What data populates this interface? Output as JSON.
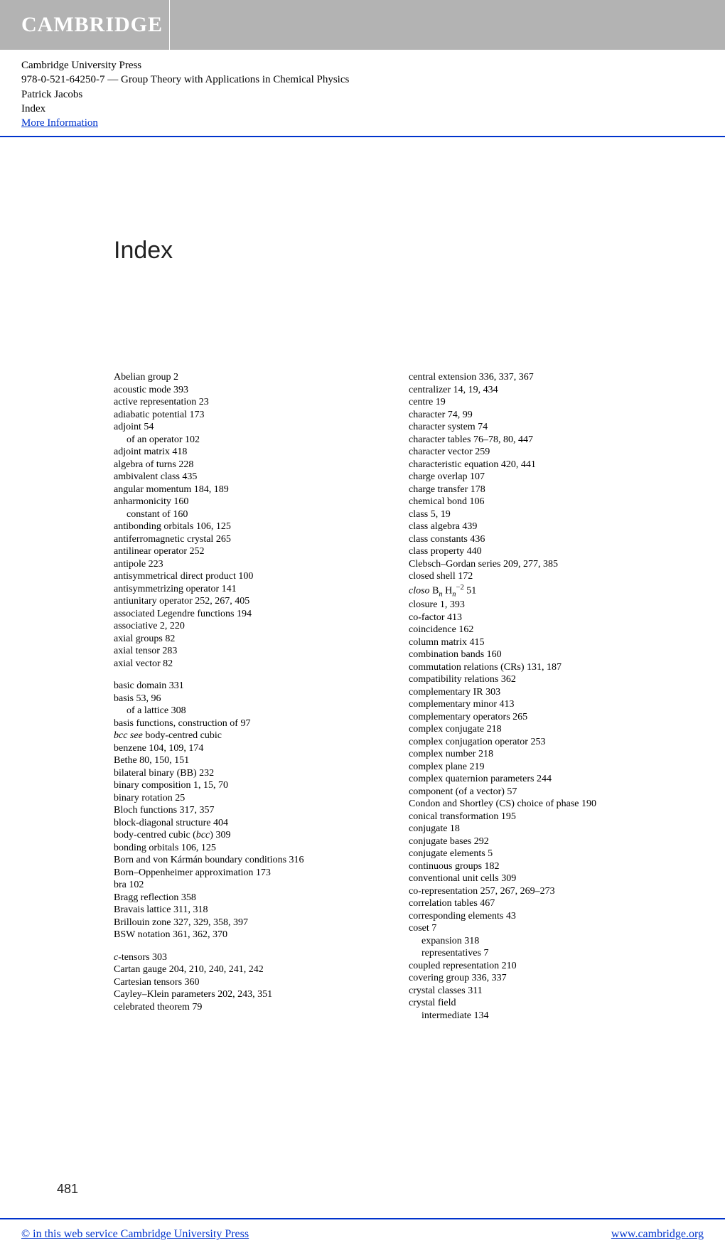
{
  "header": {
    "logo_text": "CAMBRIDGE",
    "publisher": "Cambridge University Press",
    "isbn_line": "978-0-521-64250-7 — Group Theory with Applications in Chemical Physics",
    "author": "Patrick Jacobs",
    "section": "Index",
    "more_info": "More Information"
  },
  "title": "Index",
  "page_number": "481",
  "entries": [
    {
      "t": "Abelian group 2"
    },
    {
      "t": "acoustic mode 393"
    },
    {
      "t": "active representation 23"
    },
    {
      "t": "adiabatic potential 173"
    },
    {
      "t": "adjoint 54"
    },
    {
      "t": "of an operator 102",
      "sub": true
    },
    {
      "t": "adjoint matrix 418"
    },
    {
      "t": "algebra of turns 228"
    },
    {
      "t": "ambivalent class 435"
    },
    {
      "t": "angular momentum 184, 189"
    },
    {
      "t": "anharmonicity 160"
    },
    {
      "t": "constant of 160",
      "sub": true
    },
    {
      "t": "antibonding orbitals 106, 125"
    },
    {
      "t": "antiferromagnetic crystal 265"
    },
    {
      "t": "antilinear operator 252"
    },
    {
      "t": "antipole 223"
    },
    {
      "t": "antisymmetrical direct product 100"
    },
    {
      "t": "antisymmetrizing operator 141"
    },
    {
      "t": "antiunitary operator 252, 267, 405"
    },
    {
      "t": "associated Legendre functions 194"
    },
    {
      "t": "associative 2, 220"
    },
    {
      "t": "axial groups 82"
    },
    {
      "t": "axial tensor 283"
    },
    {
      "t": "axial vector 82"
    },
    {
      "spacer": true
    },
    {
      "t": "basic domain 331"
    },
    {
      "t": "basis 53, 96"
    },
    {
      "t": "of a lattice 308",
      "sub": true
    },
    {
      "t": "basis functions, construction of 97"
    },
    {
      "html": "<span class='it'>bcc see</span> body-centred cubic"
    },
    {
      "t": "benzene 104, 109, 174"
    },
    {
      "t": "Bethe 80, 150, 151"
    },
    {
      "t": "bilateral binary (BB) 232"
    },
    {
      "t": "binary composition 1, 15, 70"
    },
    {
      "t": "binary rotation 25"
    },
    {
      "t": "Bloch functions 317, 357"
    },
    {
      "t": "block-diagonal structure 404"
    },
    {
      "html": "body-centred cubic (<span class='it'>bcc</span>) 309"
    },
    {
      "t": "bonding orbitals 106, 125"
    },
    {
      "t": "Born and von Kármán boundary conditions 316"
    },
    {
      "t": "Born–Oppenheimer approximation 173"
    },
    {
      "t": "bra 102"
    },
    {
      "t": "Bragg reflection 358"
    },
    {
      "t": "Bravais lattice 311, 318"
    },
    {
      "t": "Brillouin zone 327, 329, 358, 397"
    },
    {
      "t": "BSW notation 361, 362, 370"
    },
    {
      "spacer": true
    },
    {
      "html": "<span class='it'>c</span>-tensors 303"
    },
    {
      "t": "Cartan gauge 204, 210, 240, 241, 242"
    },
    {
      "t": "Cartesian tensors 360"
    },
    {
      "t": "Cayley–Klein parameters 202, 243, 351"
    },
    {
      "t": "celebrated theorem 79"
    },
    {
      "t": "central extension 336, 337, 367"
    },
    {
      "t": "centralizer 14, 19, 434"
    },
    {
      "t": "centre 19"
    },
    {
      "t": "character 74, 99"
    },
    {
      "t": "character system 74"
    },
    {
      "t": "character tables 76–78, 80, 447"
    },
    {
      "t": "character vector 259"
    },
    {
      "t": "characteristic equation 420, 441"
    },
    {
      "t": "charge overlap 107"
    },
    {
      "t": "charge transfer 178"
    },
    {
      "t": "chemical bond 106"
    },
    {
      "t": "class 5, 19"
    },
    {
      "t": "class algebra 439"
    },
    {
      "t": "class constants 436"
    },
    {
      "t": "class property 440"
    },
    {
      "t": "Clebsch–Gordan series 209, 277, 385"
    },
    {
      "t": "closed shell 172"
    },
    {
      "html": "<span class='it'>closo</span> B<span class='sub-n'>n</span> H<span class='sub-n'>n</span><span class='sup-n'>−2</span> 51"
    },
    {
      "t": "closure 1, 393"
    },
    {
      "t": "co-factor 413"
    },
    {
      "t": "coincidence 162"
    },
    {
      "t": "column matrix 415"
    },
    {
      "t": "combination bands 160"
    },
    {
      "t": "commutation relations (CRs) 131, 187"
    },
    {
      "t": "compatibility relations 362"
    },
    {
      "t": "complementary IR 303"
    },
    {
      "t": "complementary minor 413"
    },
    {
      "t": "complementary operators 265"
    },
    {
      "t": "complex conjugate 218"
    },
    {
      "t": "complex conjugation operator 253"
    },
    {
      "t": "complex number 218"
    },
    {
      "t": "complex plane 219"
    },
    {
      "t": "complex quaternion parameters 244"
    },
    {
      "t": "component (of a vector) 57"
    },
    {
      "t": "Condon and Shortley (CS) choice of phase 190"
    },
    {
      "t": "conical transformation 195"
    },
    {
      "t": "conjugate 18"
    },
    {
      "t": "conjugate bases 292"
    },
    {
      "t": "conjugate elements 5"
    },
    {
      "t": "continuous groups 182"
    },
    {
      "t": "conventional unit cells 309"
    },
    {
      "t": "co-representation 257, 267, 269–273"
    },
    {
      "t": "correlation tables 467"
    },
    {
      "t": "corresponding elements 43"
    },
    {
      "t": "coset 7"
    },
    {
      "t": "expansion 318",
      "sub": true
    },
    {
      "t": "representatives 7",
      "sub": true
    },
    {
      "t": "coupled representation 210"
    },
    {
      "t": "covering group 336, 337"
    },
    {
      "t": "crystal classes 311"
    },
    {
      "t": "crystal field"
    },
    {
      "t": "intermediate 134",
      "sub": true
    }
  ],
  "footer": {
    "left": "© in this web service Cambridge University Press",
    "right": "www.cambridge.org"
  },
  "colors": {
    "banner_bg": "#b3b3b3",
    "logo_fg": "#ffffff",
    "rule": "#0033cc",
    "link": "#0033cc",
    "text": "#000000"
  }
}
